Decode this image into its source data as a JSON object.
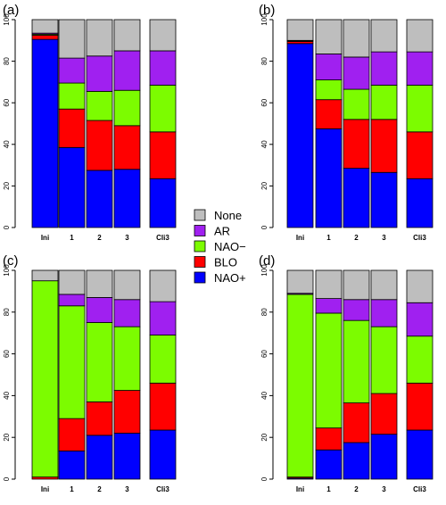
{
  "colors": {
    "None": "#bebebe",
    "AR": "#a020f0",
    "NAO−": "#7cfc00",
    "BLO": "#ff0000",
    "NAO+": "#0000ff"
  },
  "legend": {
    "entries": [
      "None",
      "AR",
      "NAO−",
      "BLO",
      "NAO+"
    ]
  },
  "chart_data": [
    {
      "type": "bar",
      "stacked": true,
      "title": "(a)",
      "categories": [
        "Ini",
        "1",
        "2",
        "3",
        "Cli3"
      ],
      "ylim": [
        0,
        100
      ],
      "yticks": [
        0,
        20,
        40,
        60,
        80,
        100
      ],
      "series": [
        {
          "name": "NAO+",
          "values": [
            90.5,
            38.5,
            27.5,
            28,
            23.5
          ]
        },
        {
          "name": "BLO",
          "values": [
            2,
            18.5,
            24,
            21,
            22.5
          ]
        },
        {
          "name": "NAO−",
          "values": [
            0.5,
            12.5,
            14,
            17,
            22.5
          ]
        },
        {
          "name": "AR",
          "values": [
            0.5,
            12,
            17,
            19,
            16.5
          ]
        },
        {
          "name": "None",
          "values": [
            6.5,
            18.5,
            17.5,
            15,
            15
          ]
        }
      ]
    },
    {
      "type": "bar",
      "stacked": true,
      "title": "(b)",
      "categories": [
        "Ini",
        "1",
        "2",
        "3",
        "Cli3"
      ],
      "ylim": [
        0,
        100
      ],
      "yticks": [
        0,
        20,
        40,
        60,
        80,
        100
      ],
      "series": [
        {
          "name": "NAO+",
          "values": [
            88.5,
            47.5,
            28.5,
            26.5,
            23.5
          ]
        },
        {
          "name": "BLO",
          "values": [
            1,
            14,
            23.5,
            25.5,
            22.5
          ]
        },
        {
          "name": "NAO−",
          "values": [
            0.3,
            9.5,
            14.5,
            16.5,
            22.5
          ]
        },
        {
          "name": "AR",
          "values": [
            0.2,
            12.5,
            15.5,
            16,
            16
          ]
        },
        {
          "name": "None",
          "values": [
            10,
            16.5,
            18,
            15.5,
            15.5
          ]
        }
      ]
    },
    {
      "type": "bar",
      "stacked": true,
      "title": "(c)",
      "categories": [
        "Ini",
        "1",
        "2",
        "3",
        "Cli3"
      ],
      "ylim": [
        0,
        100
      ],
      "yticks": [
        0,
        20,
        40,
        60,
        80,
        100
      ],
      "series": [
        {
          "name": "NAO+",
          "values": [
            0,
            13.5,
            21,
            22,
            23.5
          ]
        },
        {
          "name": "BLO",
          "values": [
            1,
            15.5,
            16,
            20.5,
            22.5
          ]
        },
        {
          "name": "NAO−",
          "values": [
            94,
            54,
            38,
            30.5,
            23
          ]
        },
        {
          "name": "AR",
          "values": [
            0,
            5.5,
            12,
            13,
            16
          ]
        },
        {
          "name": "None",
          "values": [
            5,
            11.5,
            13,
            14,
            15
          ]
        }
      ]
    },
    {
      "type": "bar",
      "stacked": true,
      "title": "(d)",
      "categories": [
        "Ini",
        "1",
        "2",
        "3",
        "Cli3"
      ],
      "ylim": [
        0,
        100
      ],
      "yticks": [
        0,
        20,
        40,
        60,
        80,
        100
      ],
      "series": [
        {
          "name": "NAO+",
          "values": [
            0.5,
            14,
            17.5,
            21.5,
            23.5
          ]
        },
        {
          "name": "BLO",
          "values": [
            0.5,
            10.5,
            19,
            19.5,
            22.5
          ]
        },
        {
          "name": "NAO−",
          "values": [
            87.5,
            55,
            39.5,
            32,
            22.5
          ]
        },
        {
          "name": "AR",
          "values": [
            0.5,
            7,
            10,
            13,
            16
          ]
        },
        {
          "name": "None",
          "values": [
            11,
            13.5,
            14,
            14,
            15.5
          ]
        }
      ]
    }
  ]
}
